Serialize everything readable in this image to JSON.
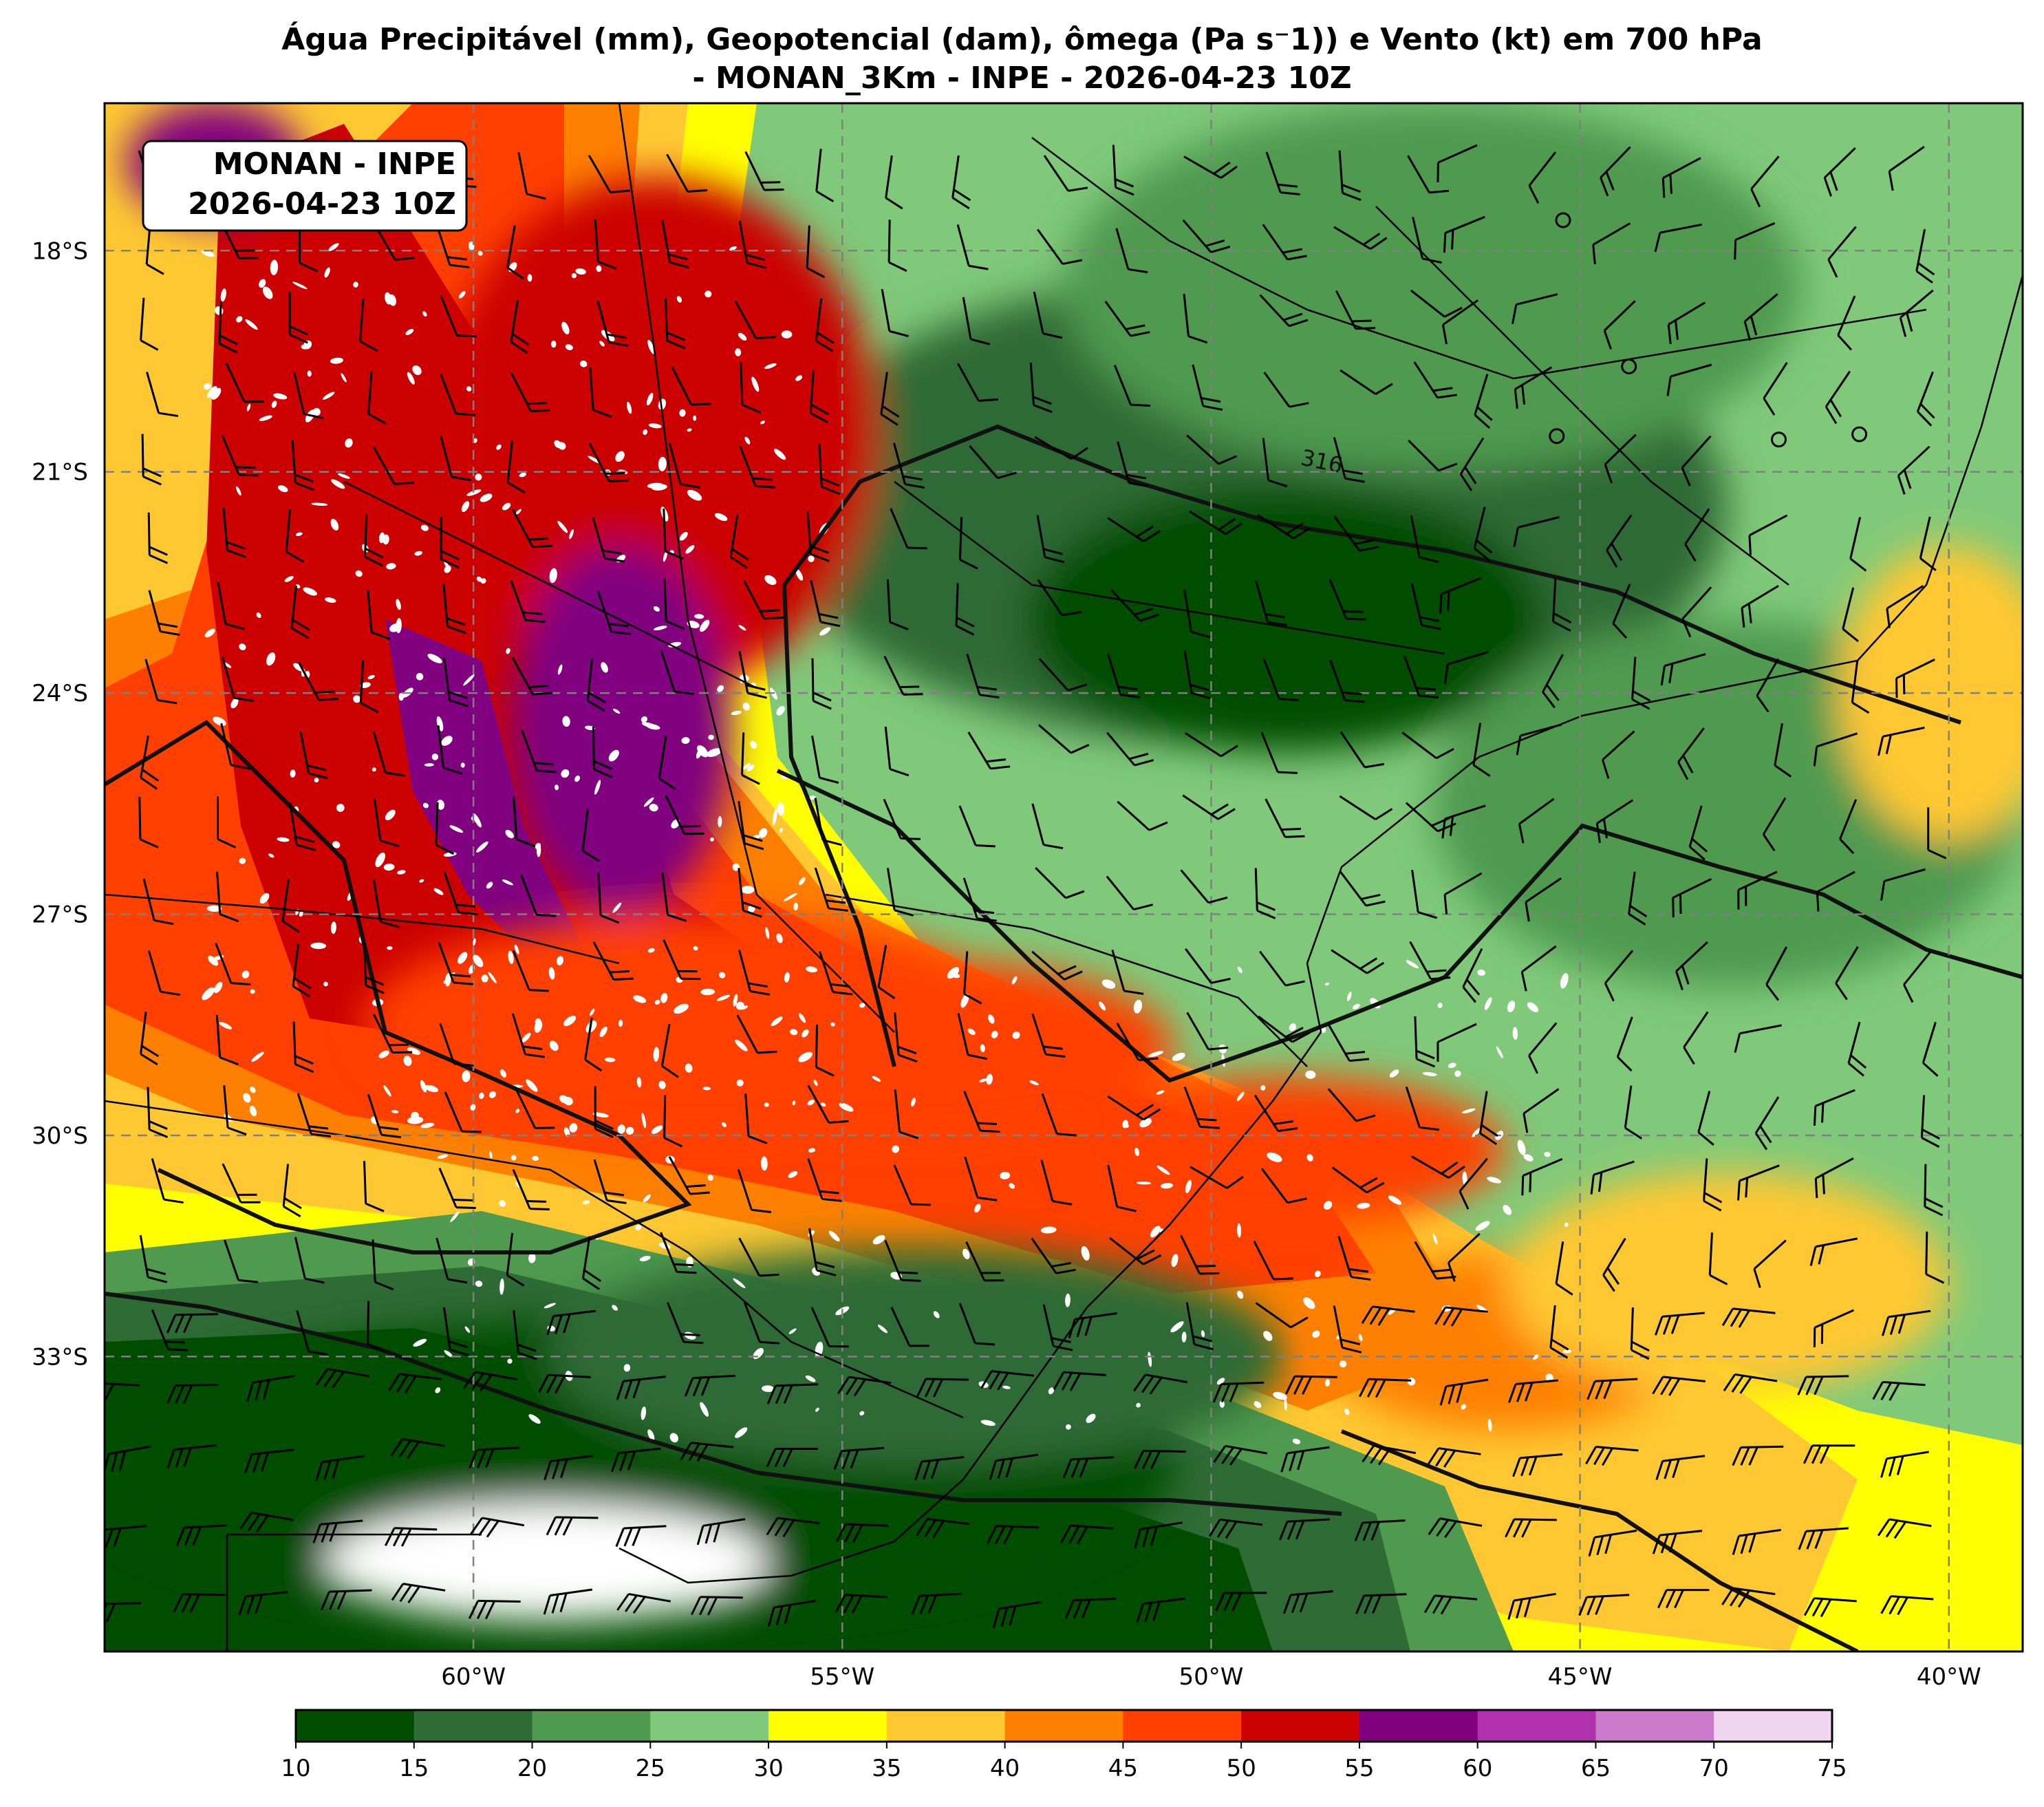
{
  "title": {
    "line1": "Água Precipitável (mm), Geopotencial (dam), ômega (Pa s⁻1)) e Vento (kt) em 700 hPa",
    "line2": "- MONAN_3Km - INPE - 2026-04-23 10Z"
  },
  "stamp": {
    "line1": "MONAN - INPE",
    "line2": "2026-04-23 10Z"
  },
  "map_extent": {
    "lon": [
      -65,
      -39
    ],
    "lat": [
      -37,
      -16
    ]
  },
  "lat_labels": [
    {
      "value": -18,
      "text": "18°S"
    },
    {
      "value": -21,
      "text": "21°S"
    },
    {
      "value": -24,
      "text": "24°S"
    },
    {
      "value": -27,
      "text": "27°S"
    },
    {
      "value": -30,
      "text": "30°S"
    },
    {
      "value": -33,
      "text": "33°S"
    }
  ],
  "lon_labels": [
    {
      "value": -60,
      "text": "60°W"
    },
    {
      "value": -55,
      "text": "55°W"
    },
    {
      "value": -50,
      "text": "50°W"
    },
    {
      "value": -45,
      "text": "45°W"
    },
    {
      "value": -40,
      "text": "40°W"
    }
  ],
  "contour_label": {
    "text": "316",
    "lon": -48.8,
    "lat": -20.9
  },
  "colorbar": {
    "ticks": [
      "10",
      "15",
      "20",
      "25",
      "30",
      "35",
      "40",
      "45",
      "50",
      "55",
      "60",
      "65",
      "70",
      "75"
    ],
    "colors": [
      "#004d00",
      "#2e6b35",
      "#4f9a4f",
      "#80c97a",
      "#ffff00",
      "#ffc832",
      "#ff8000",
      "#ff4000",
      "#cc0000",
      "#800080",
      "#b030b0",
      "#cc7acc",
      "#f0d4f0"
    ]
  },
  "field_blobs": [
    {
      "lon": -49.5,
      "lat": -21.5,
      "rx": 6.5,
      "ry": 3.2,
      "level": 1
    },
    {
      "lon": -49.0,
      "lat": -23.0,
      "rx": 3.5,
      "ry": 1.8,
      "level": 0
    },
    {
      "lon": -47.0,
      "lat": -18.5,
      "rx": 5.0,
      "ry": 2.5,
      "level": 2
    },
    {
      "lon": -43.0,
      "lat": -25.5,
      "rx": 4.0,
      "ry": 2.5,
      "level": 2
    },
    {
      "lon": -58.0,
      "lat": -34.5,
      "rx": 7.5,
      "ry": 2.0,
      "level": 0
    },
    {
      "lon": -54.0,
      "lat": -33.0,
      "rx": 5.0,
      "ry": 1.5,
      "level": 1
    },
    {
      "lon": -59.0,
      "lat": -35.8,
      "rx": 3.0,
      "ry": 0.8,
      "level": 13
    },
    {
      "lon": -57.5,
      "lat": -20.5,
      "rx": 3.0,
      "ry": 3.5,
      "level": 8
    },
    {
      "lon": -58.0,
      "lat": -24.5,
      "rx": 1.5,
      "ry": 2.5,
      "level": 9
    },
    {
      "lon": -57.0,
      "lat": -28.5,
      "rx": 4.5,
      "ry": 1.5,
      "level": 7
    },
    {
      "lon": -54.0,
      "lat": -28.8,
      "rx": 3.5,
      "ry": 1.2,
      "level": 7
    },
    {
      "lon": -49.0,
      "lat": -30.2,
      "rx": 3.0,
      "ry": 1.0,
      "level": 7
    },
    {
      "lon": -46.0,
      "lat": -32.8,
      "rx": 2.5,
      "ry": 1.2,
      "level": 6
    },
    {
      "lon": -43.0,
      "lat": -32.0,
      "rx": 3.0,
      "ry": 1.5,
      "level": 5
    },
    {
      "lon": -40.0,
      "lat": -24.0,
      "rx": 1.5,
      "ry": 2.0,
      "level": 5
    },
    {
      "lon": -63.5,
      "lat": -16.8,
      "rx": 1.2,
      "ry": 0.8,
      "level": 9
    }
  ]
}
